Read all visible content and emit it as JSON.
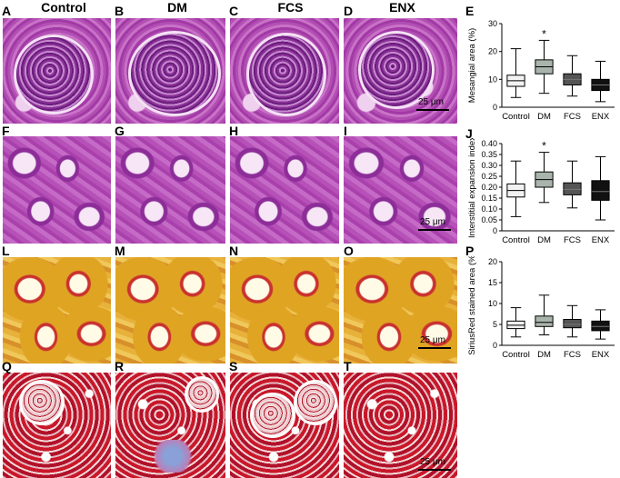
{
  "column_headers": [
    "Control",
    "DM",
    "FCS",
    "ENX"
  ],
  "panel_letters": {
    "row1": [
      "A",
      "B",
      "C",
      "D",
      "E"
    ],
    "row2": [
      "F",
      "G",
      "H",
      "I",
      "J"
    ],
    "row3": [
      "L",
      "M",
      "N",
      "O",
      "P"
    ],
    "row4": [
      "Q",
      "R",
      "S",
      "T"
    ]
  },
  "scale_bars": [
    "25 μm",
    "25 μm",
    "25 μm",
    "25 μm"
  ],
  "chart_data": [
    {
      "type": "box",
      "panel": "E",
      "ylabel": "Mesangial area (%)",
      "categories": [
        "Control",
        "DM",
        "FCS",
        "ENX"
      ],
      "ylim": [
        0,
        30
      ],
      "yticks": [
        0,
        10,
        20,
        30
      ],
      "boxes": [
        {
          "min": 3.5,
          "q1": 7.5,
          "median": 9.5,
          "q3": 11.5,
          "max": 21,
          "fill": "#f2f2f2"
        },
        {
          "min": 5,
          "q1": 12,
          "median": 14.5,
          "q3": 17,
          "max": 24,
          "fill": "#a8b4ac"
        },
        {
          "min": 4,
          "q1": 8,
          "median": 10,
          "q3": 12,
          "max": 18.5,
          "fill": "#555555"
        },
        {
          "min": 2,
          "q1": 6,
          "median": 8,
          "q3": 10,
          "max": 16.5,
          "fill": "#111111"
        }
      ],
      "annotations": [
        {
          "category": "DM",
          "text": "*"
        }
      ]
    },
    {
      "type": "box",
      "panel": "J",
      "ylabel": "Interstitial expansion index",
      "categories": [
        "Control",
        "DM",
        "FCS",
        "ENX"
      ],
      "ylim": [
        0,
        0.4
      ],
      "yticks": [
        0,
        0.05,
        0.1,
        0.15,
        0.2,
        0.25,
        0.3,
        0.35,
        0.4
      ],
      "yticklabels": [
        "0",
        "0.05",
        "0.10",
        "0.15",
        "0.20",
        "0.25",
        "0.30",
        "0.35",
        "0.40"
      ],
      "boxes": [
        {
          "min": 0.065,
          "q1": 0.155,
          "median": 0.185,
          "q3": 0.215,
          "max": 0.32,
          "fill": "#f2f2f2"
        },
        {
          "min": 0.13,
          "q1": 0.2,
          "median": 0.235,
          "q3": 0.27,
          "max": 0.36,
          "fill": "#a8b4ac"
        },
        {
          "min": 0.105,
          "q1": 0.165,
          "median": 0.19,
          "q3": 0.22,
          "max": 0.32,
          "fill": "#555555"
        },
        {
          "min": 0.05,
          "q1": 0.14,
          "median": 0.18,
          "q3": 0.23,
          "max": 0.34,
          "fill": "#111111"
        }
      ],
      "annotations": [
        {
          "category": "DM",
          "text": "*"
        }
      ]
    },
    {
      "type": "box",
      "panel": "P",
      "ylabel": "SiriusRed stained area (%)",
      "categories": [
        "Control",
        "DM",
        "FCS",
        "ENX"
      ],
      "ylim": [
        0,
        20
      ],
      "yticks": [
        0,
        5,
        10,
        15,
        20
      ],
      "boxes": [
        {
          "min": 2,
          "q1": 4,
          "median": 4.8,
          "q3": 5.8,
          "max": 9,
          "fill": "#f2f2f2"
        },
        {
          "min": 2.5,
          "q1": 4.5,
          "median": 5.5,
          "q3": 7,
          "max": 12,
          "fill": "#a8b4ac"
        },
        {
          "min": 2,
          "q1": 4.2,
          "median": 5,
          "q3": 6.2,
          "max": 9.5,
          "fill": "#555555"
        },
        {
          "min": 1.5,
          "q1": 3.5,
          "median": 4.5,
          "q3": 5.8,
          "max": 8.5,
          "fill": "#111111"
        }
      ],
      "annotations": []
    }
  ]
}
